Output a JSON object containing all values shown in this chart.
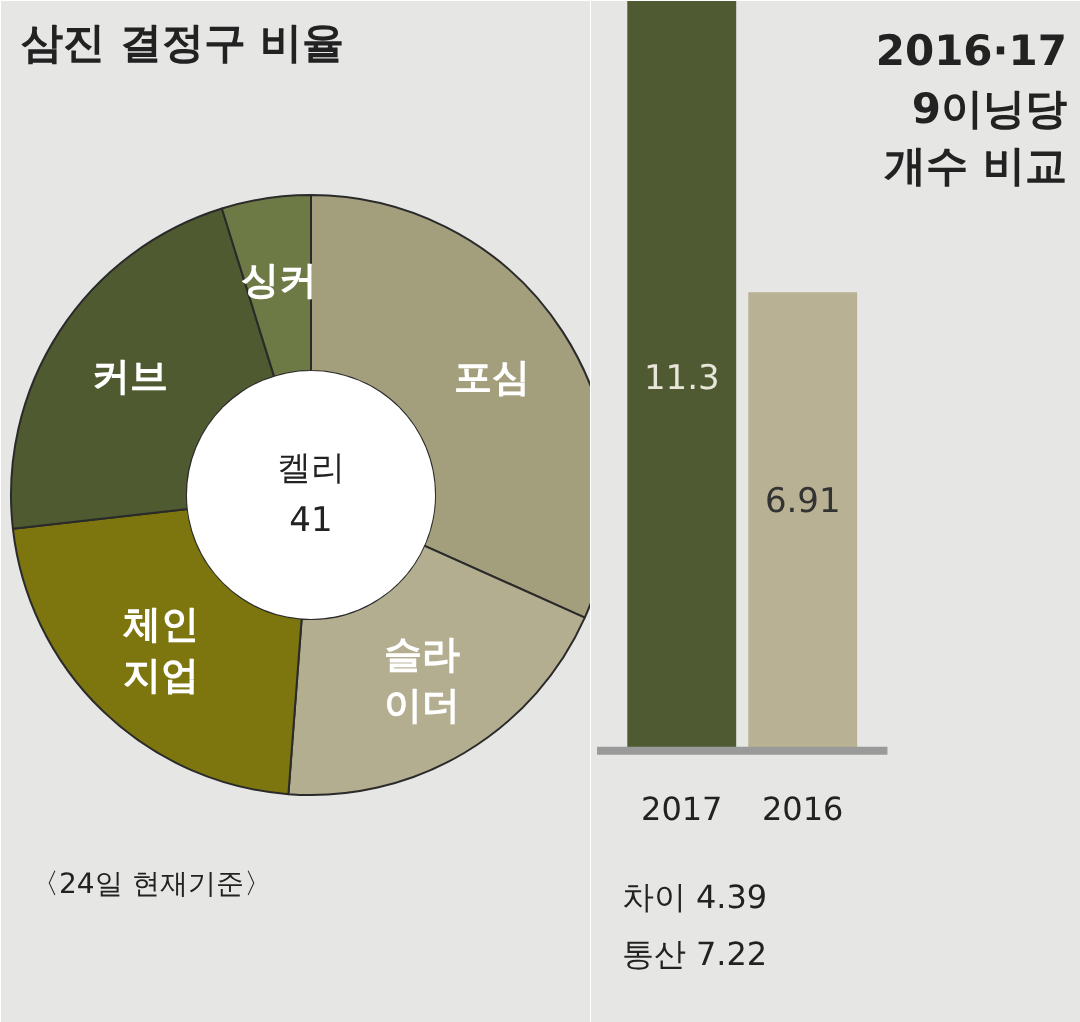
{
  "chart_data": [
    {
      "type": "donut",
      "title": "삼진 결정구  비율",
      "categories": [
        "포심",
        "슬라\n이더",
        "체인\n지업",
        "커브",
        "싱커"
      ],
      "values": [
        31.7,
        19.5,
        22.0,
        22.0,
        4.8
      ],
      "colors": [
        "#a39e7c",
        "#b3ae90",
        "#7d760f",
        "#4f5a31",
        "#6d7a45"
      ],
      "annotations": [
        "켈리\n41",
        "〈24일 현재기준〉"
      ]
    },
    {
      "type": "bar",
      "title": "2016·17\n9이닝당\n개수 비교",
      "categories": [
        "2017",
        "2016"
      ],
      "values": [
        11.3,
        6.91
      ],
      "colors": [
        "#4f5a32",
        "#b8b194"
      ],
      "data_labels": true,
      "annotations": [
        "차이 4.39",
        "통산 7.22"
      ]
    }
  ]
}
